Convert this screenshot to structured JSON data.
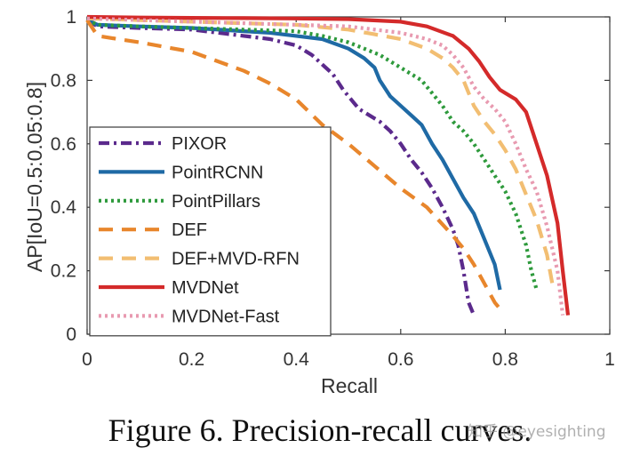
{
  "chart_data": {
    "type": "line",
    "title": "",
    "xlabel": "Recall",
    "ylabel": "AP[IoU=0.5:0.05:0.8]",
    "xlim": [
      0,
      1
    ],
    "ylim": [
      0,
      1
    ],
    "xticks": [
      "0",
      "0.2",
      "0.4",
      "0.6",
      "0.8",
      "1"
    ],
    "yticks": [
      "0",
      "0.2",
      "0.4",
      "0.6",
      "0.8",
      "1"
    ],
    "legend_position": "bottom-left",
    "series": [
      {
        "name": "PIXOR",
        "color": "#5b2a8c",
        "dash": "dashdot",
        "x": [
          0,
          0.02,
          0.1,
          0.2,
          0.3,
          0.35,
          0.4,
          0.43,
          0.45,
          0.47,
          0.49,
          0.51,
          0.52,
          0.54,
          0.56,
          0.58,
          0.6,
          0.62,
          0.64,
          0.66,
          0.68,
          0.7,
          0.71,
          0.72,
          0.73,
          0.74
        ],
        "y": [
          0.99,
          0.97,
          0.965,
          0.96,
          0.94,
          0.93,
          0.91,
          0.88,
          0.85,
          0.82,
          0.77,
          0.73,
          0.71,
          0.69,
          0.67,
          0.64,
          0.6,
          0.55,
          0.51,
          0.46,
          0.4,
          0.33,
          0.28,
          0.2,
          0.1,
          0.06
        ]
      },
      {
        "name": "PointRCNN",
        "color": "#1f6aa5",
        "dash": "solid",
        "x": [
          0,
          0.02,
          0.1,
          0.2,
          0.3,
          0.35,
          0.4,
          0.45,
          0.5,
          0.53,
          0.55,
          0.56,
          0.58,
          0.6,
          0.62,
          0.64,
          0.66,
          0.68,
          0.7,
          0.72,
          0.74,
          0.76,
          0.78,
          0.79
        ],
        "y": [
          0.99,
          0.975,
          0.97,
          0.965,
          0.955,
          0.95,
          0.94,
          0.93,
          0.9,
          0.87,
          0.84,
          0.8,
          0.75,
          0.72,
          0.69,
          0.66,
          0.6,
          0.55,
          0.49,
          0.43,
          0.38,
          0.3,
          0.22,
          0.14
        ]
      },
      {
        "name": "PointPillars",
        "color": "#2e9a3c",
        "dash": "dot",
        "x": [
          0,
          0.02,
          0.1,
          0.2,
          0.3,
          0.4,
          0.45,
          0.5,
          0.53,
          0.56,
          0.58,
          0.6,
          0.62,
          0.64,
          0.66,
          0.68,
          0.7,
          0.72,
          0.74,
          0.76,
          0.78,
          0.8,
          0.82,
          0.84,
          0.85,
          0.86
        ],
        "y": [
          0.99,
          0.975,
          0.97,
          0.965,
          0.96,
          0.955,
          0.94,
          0.92,
          0.9,
          0.88,
          0.86,
          0.84,
          0.82,
          0.8,
          0.76,
          0.72,
          0.67,
          0.64,
          0.6,
          0.55,
          0.5,
          0.45,
          0.38,
          0.28,
          0.2,
          0.14
        ]
      },
      {
        "name": "DEF",
        "color": "#e8862c",
        "dash": "dash",
        "x": [
          0,
          0.02,
          0.1,
          0.2,
          0.25,
          0.3,
          0.35,
          0.4,
          0.45,
          0.5,
          0.55,
          0.6,
          0.65,
          0.7,
          0.72,
          0.74,
          0.76,
          0.78,
          0.79
        ],
        "y": [
          0.99,
          0.94,
          0.92,
          0.89,
          0.86,
          0.83,
          0.79,
          0.74,
          0.66,
          0.6,
          0.53,
          0.46,
          0.4,
          0.31,
          0.27,
          0.22,
          0.16,
          0.1,
          0.08
        ]
      },
      {
        "name": "DEF+MVD-RFN",
        "color": "#f2be72",
        "dash": "dash",
        "x": [
          0,
          0.1,
          0.2,
          0.3,
          0.4,
          0.5,
          0.55,
          0.6,
          0.65,
          0.68,
          0.7,
          0.72,
          0.74,
          0.76,
          0.78,
          0.8,
          0.82,
          0.84,
          0.86,
          0.88,
          0.89
        ],
        "y": [
          0.995,
          0.99,
          0.985,
          0.98,
          0.975,
          0.96,
          0.945,
          0.93,
          0.9,
          0.87,
          0.84,
          0.8,
          0.72,
          0.67,
          0.63,
          0.58,
          0.52,
          0.44,
          0.36,
          0.25,
          0.16
        ]
      },
      {
        "name": "MVDNet",
        "color": "#d42a2a",
        "dash": "solid",
        "x": [
          0,
          0.1,
          0.2,
          0.3,
          0.4,
          0.5,
          0.6,
          0.65,
          0.7,
          0.73,
          0.75,
          0.77,
          0.79,
          0.8,
          0.82,
          0.84,
          0.86,
          0.88,
          0.9,
          0.91,
          0.92
        ],
        "y": [
          1.0,
          0.998,
          0.997,
          0.996,
          0.995,
          0.993,
          0.985,
          0.97,
          0.94,
          0.9,
          0.86,
          0.81,
          0.77,
          0.76,
          0.74,
          0.7,
          0.6,
          0.5,
          0.35,
          0.2,
          0.06
        ]
      },
      {
        "name": "MVDNet-Fast",
        "color": "#e89ab0",
        "dash": "dot",
        "x": [
          0,
          0.1,
          0.2,
          0.3,
          0.4,
          0.5,
          0.55,
          0.6,
          0.65,
          0.68,
          0.7,
          0.72,
          0.74,
          0.76,
          0.78,
          0.8,
          0.82,
          0.84,
          0.86,
          0.88,
          0.9,
          0.91
        ],
        "y": [
          0.995,
          0.99,
          0.985,
          0.98,
          0.975,
          0.97,
          0.96,
          0.95,
          0.93,
          0.91,
          0.88,
          0.84,
          0.78,
          0.74,
          0.71,
          0.67,
          0.6,
          0.52,
          0.45,
          0.34,
          0.2,
          0.06
        ]
      }
    ]
  },
  "caption": "Figure 6. Precision-recall curves.",
  "watermark": "知乎 @eyesighting"
}
